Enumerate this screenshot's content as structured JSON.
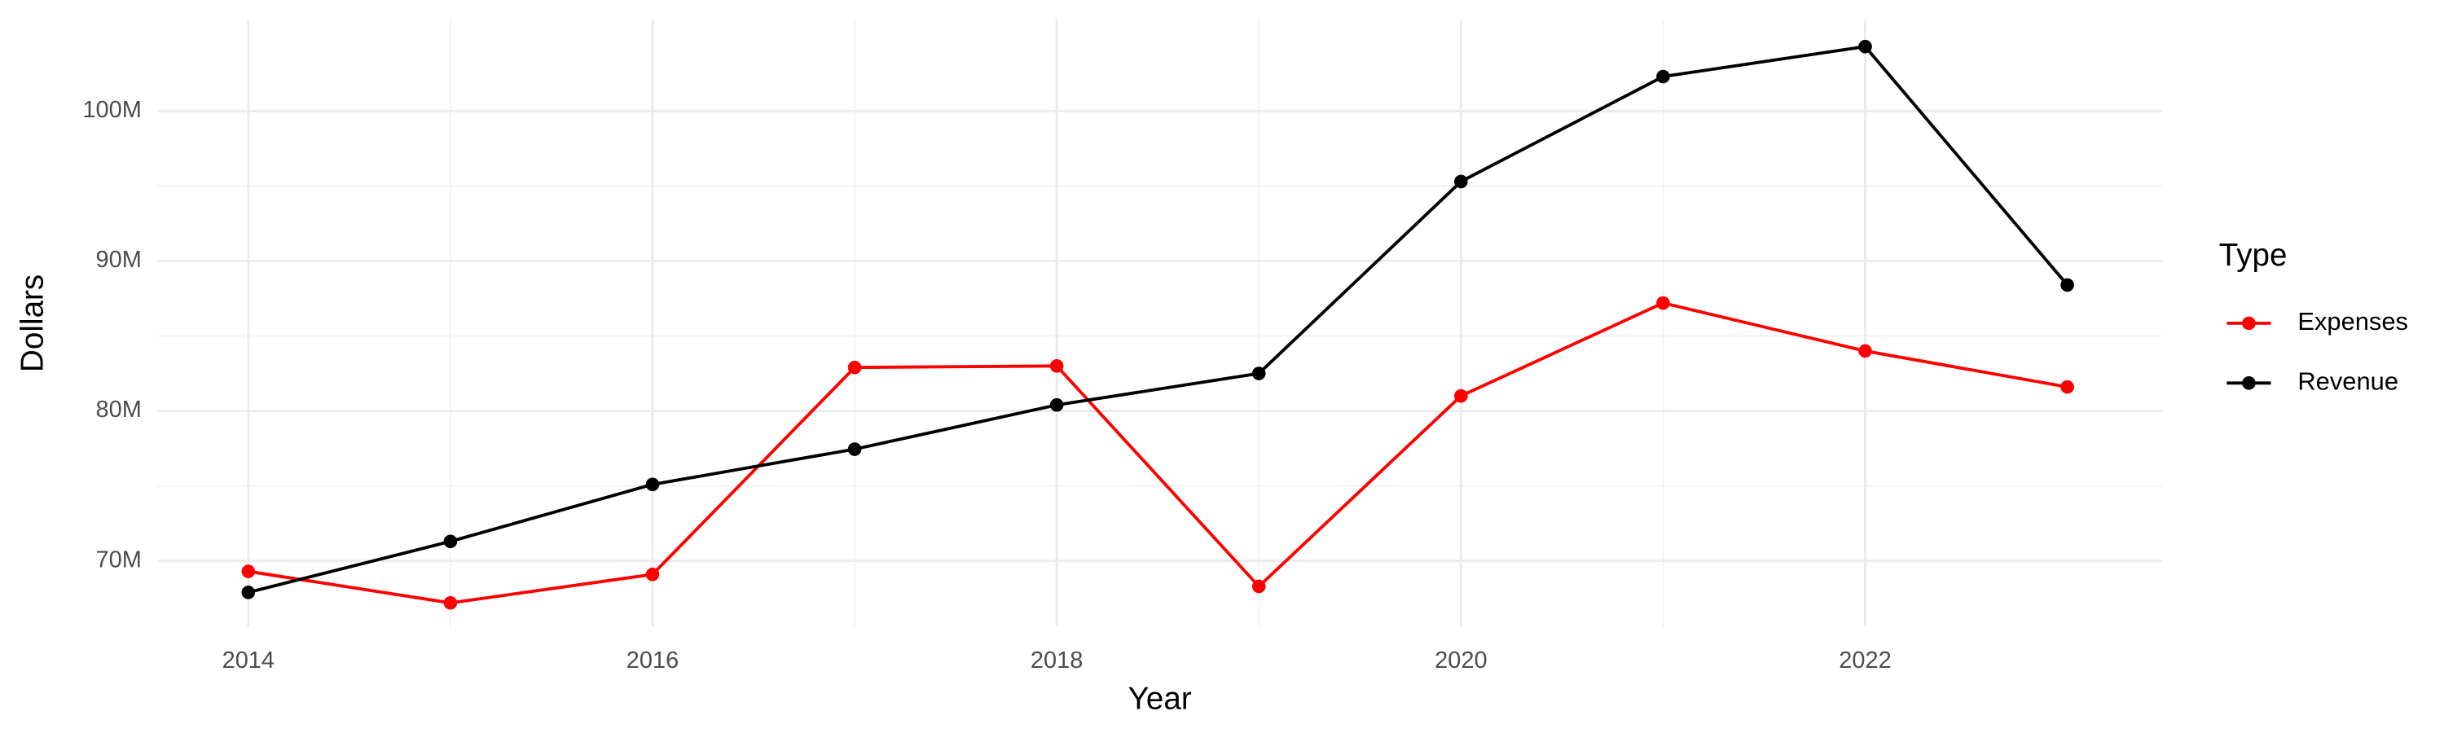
{
  "chart_data": {
    "type": "line",
    "x_label": "Year",
    "y_label": "Dollars",
    "legend_title": "Type",
    "legend_position": "right",
    "grid": true,
    "x": [
      2014,
      2015,
      2016,
      2017,
      2018,
      2019,
      2020,
      2021,
      2022,
      2023
    ],
    "series": [
      {
        "name": "Expenses",
        "color": "#ff0000",
        "values": [
          69300000,
          67200000,
          69100000,
          82900000,
          83000000,
          68300000,
          81000000,
          87200000,
          84000000,
          81600000
        ]
      },
      {
        "name": "Revenue",
        "color": "#000000",
        "values": [
          67900000,
          71300000,
          75100000,
          77450000,
          80400000,
          82500000,
          95300000,
          102300000,
          104300000,
          88400000
        ]
      }
    ],
    "xlim": [
      2013.55,
      2023.47
    ],
    "xticks": [
      2014,
      2016,
      2018,
      2020,
      2022
    ],
    "ylim": [
      65600000,
      106100000
    ],
    "yticks": [
      {
        "value": 70000000,
        "label": "70M"
      },
      {
        "value": 80000000,
        "label": "80M"
      },
      {
        "value": 90000000,
        "label": "90M"
      },
      {
        "value": 100000000,
        "label": "100M"
      }
    ]
  }
}
